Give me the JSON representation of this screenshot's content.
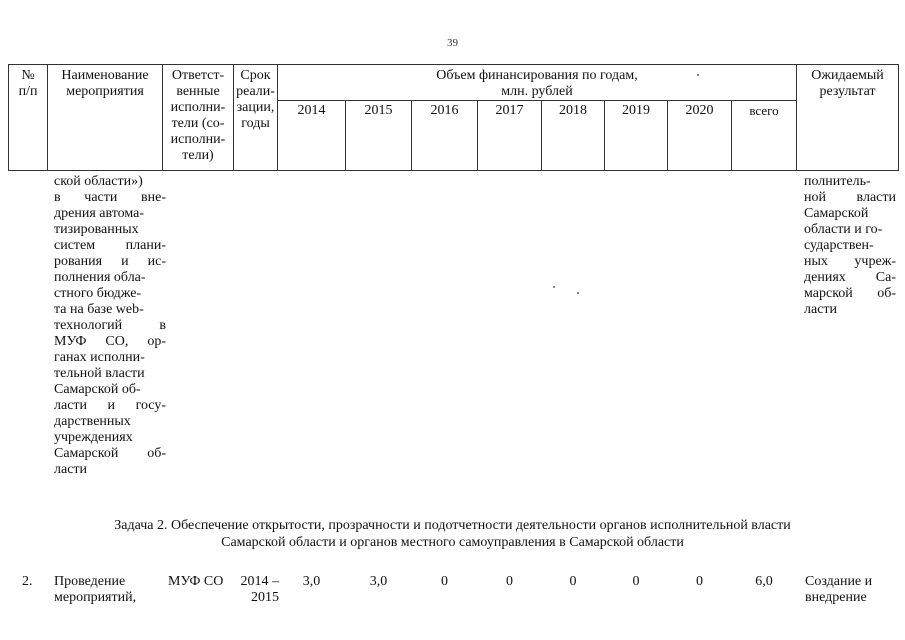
{
  "page_number": "39",
  "header": {
    "num": [
      "№",
      "п/п"
    ],
    "name": [
      "Наименование",
      "мероприятия"
    ],
    "resp": [
      "Ответст-",
      "венные",
      "исполни-",
      "тели (со-",
      "исполни-",
      "тели)"
    ],
    "term": [
      "Срок",
      "реали-",
      "зации,",
      "годы"
    ],
    "funding_title": [
      "Объем финансирования по годам,",
      "млн. рублей"
    ],
    "years": [
      "2014",
      "2015",
      "2016",
      "2017",
      "2018",
      "2019",
      "2020",
      "всего"
    ],
    "result": [
      "Ожидаемый",
      "результат"
    ]
  },
  "continued_row": {
    "name_lines": [
      "ской области»)",
      "в части вне-",
      "дрения автома-",
      "тизированных",
      "систем плани-",
      "рования и ис-",
      "полнения обла-",
      "стного бюдже-",
      "та на базе web-",
      "технологий в",
      "МУФ СО, ор-",
      "ганах исполни-",
      "тельной власти",
      "Самарской об-",
      "ласти и госу-",
      "дарственных",
      "учреждениях",
      "Самарской об-",
      "ласти"
    ],
    "result_lines": [
      "полнитель-",
      "ной власти",
      "Самарской",
      "области и го-",
      "сударствен-",
      "ных учреж-",
      "дениях Са-",
      "марской об-",
      "ласти"
    ]
  },
  "task_heading": [
    "Задача 2. Обеспечение открытости, прозрачности и подотчетности деятельности органов исполнительной власти",
    "Самарской области и органов местного самоуправления в Самарской области"
  ],
  "row2": {
    "num": "2.",
    "name_lines": [
      "Проведение",
      "мероприятий,"
    ],
    "resp": "МУФ СО",
    "term_lines": [
      "2014 –",
      "2015"
    ],
    "values": [
      "3,0",
      "3,0",
      "0",
      "0",
      "0",
      "0",
      "0",
      "6,0"
    ],
    "result_lines": [
      "Создание и",
      "внедрение"
    ]
  }
}
